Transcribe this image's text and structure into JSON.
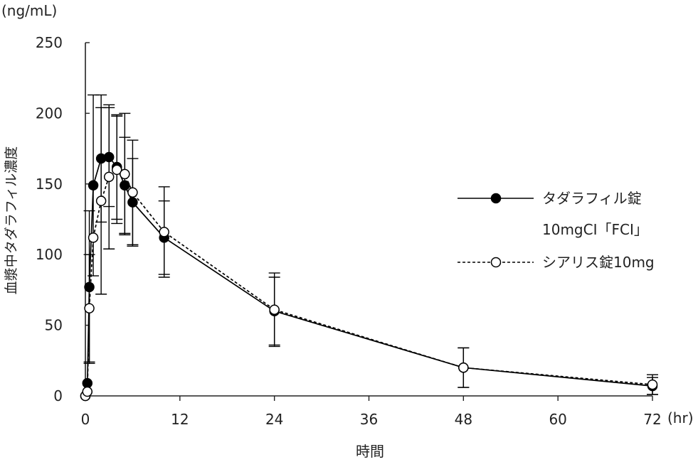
{
  "chart_data": {
    "type": "line",
    "title": "",
    "unit_label": "(ng/mL)",
    "ylabel": "血漿中タダラフィル濃度",
    "xlabel": "時間",
    "x_unit_label": "(hr)",
    "xlim": [
      0,
      72
    ],
    "ylim": [
      0,
      250
    ],
    "x_ticks": [
      0,
      12,
      24,
      36,
      48,
      60,
      72
    ],
    "y_ticks": [
      0,
      50,
      100,
      150,
      200,
      250
    ],
    "grid": false,
    "legend_position": "right",
    "series": [
      {
        "name_line1": "タダラフィル錠",
        "name_line2": "10mgCI「FCI」",
        "line_style": "solid",
        "marker": "filled-circle",
        "x": [
          0,
          0.25,
          0.5,
          1,
          2,
          3,
          4,
          5,
          6,
          10,
          24,
          48,
          72
        ],
        "y": [
          0,
          9,
          77,
          149,
          168,
          169,
          162,
          149,
          137,
          112,
          60,
          20,
          7
        ],
        "err": [
          0,
          0,
          54,
          64,
          45,
          35,
          37,
          34,
          31,
          26,
          24,
          14,
          6
        ]
      },
      {
        "name": "シアリス錠10mg",
        "line_style": "dashed",
        "marker": "open-circle",
        "x": [
          0,
          0.25,
          0.5,
          1,
          2,
          3,
          4,
          5,
          6,
          10,
          24,
          48,
          72
        ],
        "y": [
          0,
          3,
          62,
          112,
          138,
          155,
          160,
          157,
          144,
          116,
          61,
          20,
          8
        ],
        "err": [
          0,
          0,
          38,
          0,
          66,
          51,
          38,
          43,
          37,
          32,
          26,
          14,
          7
        ]
      }
    ]
  }
}
